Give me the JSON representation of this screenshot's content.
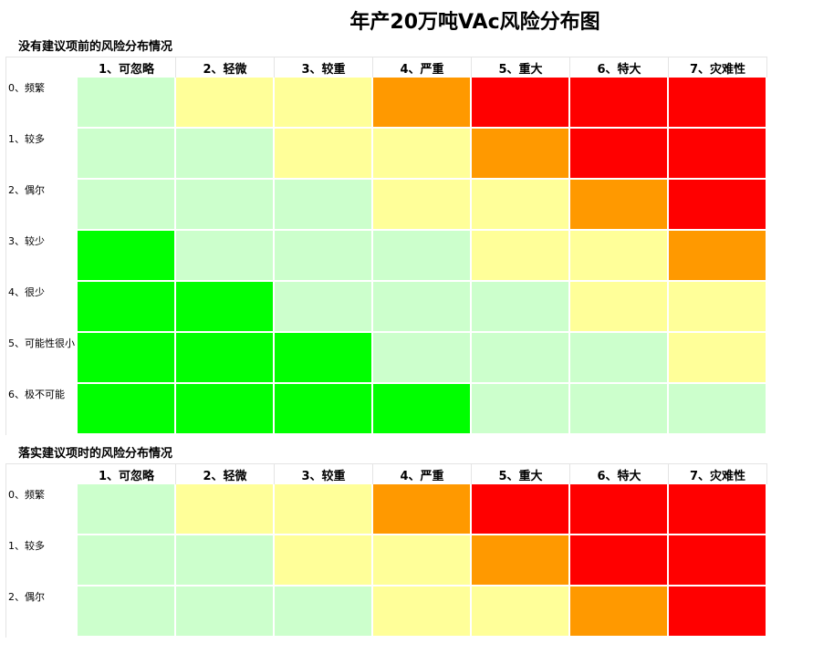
{
  "title": "年产20万吨VAc风险分布图",
  "colors": {
    "green": "#00ff00",
    "lightgreen": "#ccffcc",
    "yellow": "#ffff99",
    "orange": "#ff9900",
    "red": "#ff0000"
  },
  "severity_headers": [
    "1、可忽略",
    "2、轻微",
    "3、较重",
    "4、严重",
    "5、重大",
    "6、特大",
    "7、灾难性"
  ],
  "sections": [
    {
      "title": "没有建议项前的风险分布情况",
      "rows": [
        {
          "label": "0、频繁",
          "cells": [
            "lightgreen",
            "yellow",
            "yellow",
            "orange",
            "red",
            "red",
            "red"
          ]
        },
        {
          "label": "1、较多",
          "cells": [
            "lightgreen",
            "lightgreen",
            "yellow",
            "yellow",
            "orange",
            "red",
            "red"
          ]
        },
        {
          "label": "2、偶尔",
          "cells": [
            "lightgreen",
            "lightgreen",
            "lightgreen",
            "yellow",
            "yellow",
            "orange",
            "red"
          ]
        },
        {
          "label": "3、较少",
          "cells": [
            "green",
            "lightgreen",
            "lightgreen",
            "lightgreen",
            "yellow",
            "yellow",
            "orange"
          ]
        },
        {
          "label": "4、很少",
          "cells": [
            "green",
            "green",
            "lightgreen",
            "lightgreen",
            "lightgreen",
            "yellow",
            "yellow"
          ]
        },
        {
          "label": "5、可能性很小",
          "cells": [
            "green",
            "green",
            "green",
            "lightgreen",
            "lightgreen",
            "lightgreen",
            "yellow"
          ]
        },
        {
          "label": "6、极不可能",
          "cells": [
            "green",
            "green",
            "green",
            "green",
            "lightgreen",
            "lightgreen",
            "lightgreen"
          ]
        }
      ]
    },
    {
      "title": "落实建议项时的风险分布情况",
      "rows": [
        {
          "label": "0、频繁",
          "cells": [
            "lightgreen",
            "yellow",
            "yellow",
            "orange",
            "red",
            "red",
            "red"
          ]
        },
        {
          "label": "1、较多",
          "cells": [
            "lightgreen",
            "lightgreen",
            "yellow",
            "yellow",
            "orange",
            "red",
            "red"
          ]
        },
        {
          "label": "2、偶尔",
          "cells": [
            "lightgreen",
            "lightgreen",
            "lightgreen",
            "yellow",
            "yellow",
            "orange",
            "red"
          ]
        }
      ]
    }
  ]
}
